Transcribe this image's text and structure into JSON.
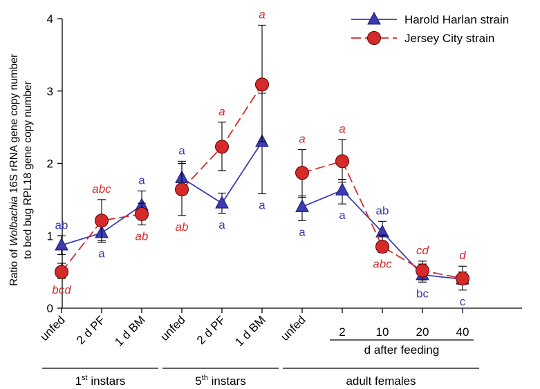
{
  "chart_data": {
    "type": "line",
    "ylabel_line1_parts": [
      "Ratio of ",
      "Wolbachia",
      " 16S rRNA gene copy number"
    ],
    "ylabel_line2": "to bed bug RPL18 gene copy number",
    "ylim": [
      0,
      4
    ],
    "yticks": [
      0,
      1,
      2,
      3,
      4
    ],
    "categories": [
      "unfed",
      "2 d PF",
      "1 d BM",
      "unfed",
      "2 d PF",
      "1 d BM",
      "unfed",
      "2",
      "10",
      "20",
      "40"
    ],
    "groups": [
      {
        "label_base": "1",
        "label_sup": "st",
        "label_rest": " instars",
        "indices": [
          0,
          1,
          2
        ]
      },
      {
        "label_base": "5",
        "label_sup": "th",
        "label_rest": " instars",
        "indices": [
          3,
          4,
          5
        ]
      },
      {
        "label": "adult females",
        "indices": [
          6,
          7,
          8,
          9,
          10
        ]
      }
    ],
    "subgroup": {
      "label": "d after feeding",
      "indices": [
        7,
        8,
        9,
        10
      ]
    },
    "legend_position": "top-right",
    "grid": false,
    "series": [
      {
        "name": "Harold Harlan strain",
        "color": "#3b3bb3",
        "marker": "triangle",
        "line_style": "solid",
        "segments": [
          [
            0,
            1,
            2
          ],
          [
            3,
            4,
            5
          ],
          [
            6,
            7,
            8,
            9,
            10
          ]
        ],
        "values": [
          0.87,
          1.04,
          1.42,
          1.8,
          1.45,
          2.3,
          1.4,
          1.63,
          1.05,
          0.46,
          0.4
        ],
        "err_high": [
          1.0,
          1.17,
          1.62,
          2.03,
          1.59,
          2.97,
          1.55,
          1.78,
          1.2,
          0.61,
          0.5
        ],
        "err_low": [
          0.74,
          0.91,
          1.22,
          1.57,
          1.31,
          1.58,
          1.21,
          1.44,
          0.9,
          0.36,
          0.25
        ],
        "letters": [
          "ab",
          "a",
          "a",
          "a",
          "a",
          "a",
          "a",
          "a",
          "ab",
          "bc",
          "c"
        ],
        "letter_pos": [
          "above",
          "below",
          "above",
          "above",
          "below",
          "below",
          "below",
          "below",
          "above",
          "below",
          "below"
        ]
      },
      {
        "name": "Jersey City strain",
        "color": "#d42a2a",
        "marker": "circle",
        "line_style": "dashed",
        "segments": [
          [
            0,
            1,
            2
          ],
          [
            3,
            4,
            5
          ],
          [
            6,
            7,
            8,
            9,
            10
          ]
        ],
        "values": [
          0.5,
          1.21,
          1.3,
          1.64,
          2.23,
          3.09,
          1.87,
          2.03,
          0.85,
          0.52,
          0.41
        ],
        "err_high": [
          0.62,
          1.5,
          1.45,
          2.0,
          2.57,
          3.91,
          2.19,
          2.33,
          1.01,
          0.65,
          0.58
        ],
        "err_low": [
          0.41,
          0.93,
          1.15,
          1.28,
          1.9,
          2.3,
          1.53,
          1.74,
          0.77,
          0.39,
          0.33
        ],
        "letters": [
          "bcd",
          "abc",
          "ab",
          "ab",
          "a",
          "a",
          "a",
          "a",
          "abc",
          "cd",
          "d"
        ],
        "letter_pos": [
          "below",
          "above",
          "below",
          "below",
          "above",
          "above",
          "above",
          "above",
          "below",
          "above",
          "above"
        ]
      }
    ]
  }
}
